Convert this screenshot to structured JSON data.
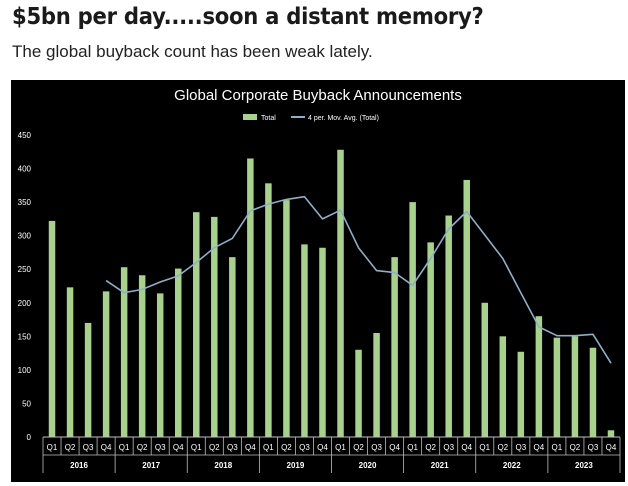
{
  "article": {
    "headline": "$5bn per day.....soon a distant memory?",
    "subheadline": "The global buyback count has been weak lately."
  },
  "colors": {
    "background": "#000000",
    "bar": "#a9d18e",
    "line": "#8eaec9",
    "text": "#ffffff",
    "axis": "#bfbfbf"
  },
  "chart_data": {
    "type": "bar",
    "title": "Global Corporate Buyback Announcements",
    "xlabel": "",
    "ylabel": "",
    "ylim": [
      0,
      450
    ],
    "yticks": [
      0,
      50,
      100,
      150,
      200,
      250,
      300,
      350,
      400,
      450
    ],
    "grid": false,
    "legend_position": "top-center",
    "categories": [
      "Q1",
      "Q2",
      "Q3",
      "Q4",
      "Q1",
      "Q2",
      "Q3",
      "Q4",
      "Q1",
      "Q2",
      "Q3",
      "Q4",
      "Q1",
      "Q2",
      "Q3",
      "Q4",
      "Q1",
      "Q2",
      "Q3",
      "Q4",
      "Q1",
      "Q2",
      "Q3",
      "Q4",
      "Q1",
      "Q2",
      "Q3",
      "Q4",
      "Q1",
      "Q2",
      "Q3",
      "Q4"
    ],
    "years": [
      "2016",
      "2017",
      "2018",
      "2019",
      "2020",
      "2021",
      "2022",
      "2023"
    ],
    "series": [
      {
        "name": "Total",
        "type": "bar",
        "values": [
          322,
          223,
          170,
          217,
          253,
          241,
          214,
          251,
          335,
          328,
          268,
          415,
          378,
          353,
          287,
          282,
          428,
          130,
          155,
          268,
          350,
          290,
          330,
          383,
          200,
          150,
          127,
          180,
          148,
          150,
          133,
          10
        ]
      },
      {
        "name": "4 per. Mov. Avg. (Total)",
        "type": "line",
        "values": [
          null,
          null,
          null,
          233,
          215,
          220,
          231,
          240,
          260,
          282,
          296,
          337,
          347,
          354,
          358,
          325,
          338,
          282,
          248,
          245,
          226,
          266,
          310,
          336,
          301,
          266,
          215,
          164,
          151,
          151,
          153,
          110
        ]
      }
    ]
  }
}
